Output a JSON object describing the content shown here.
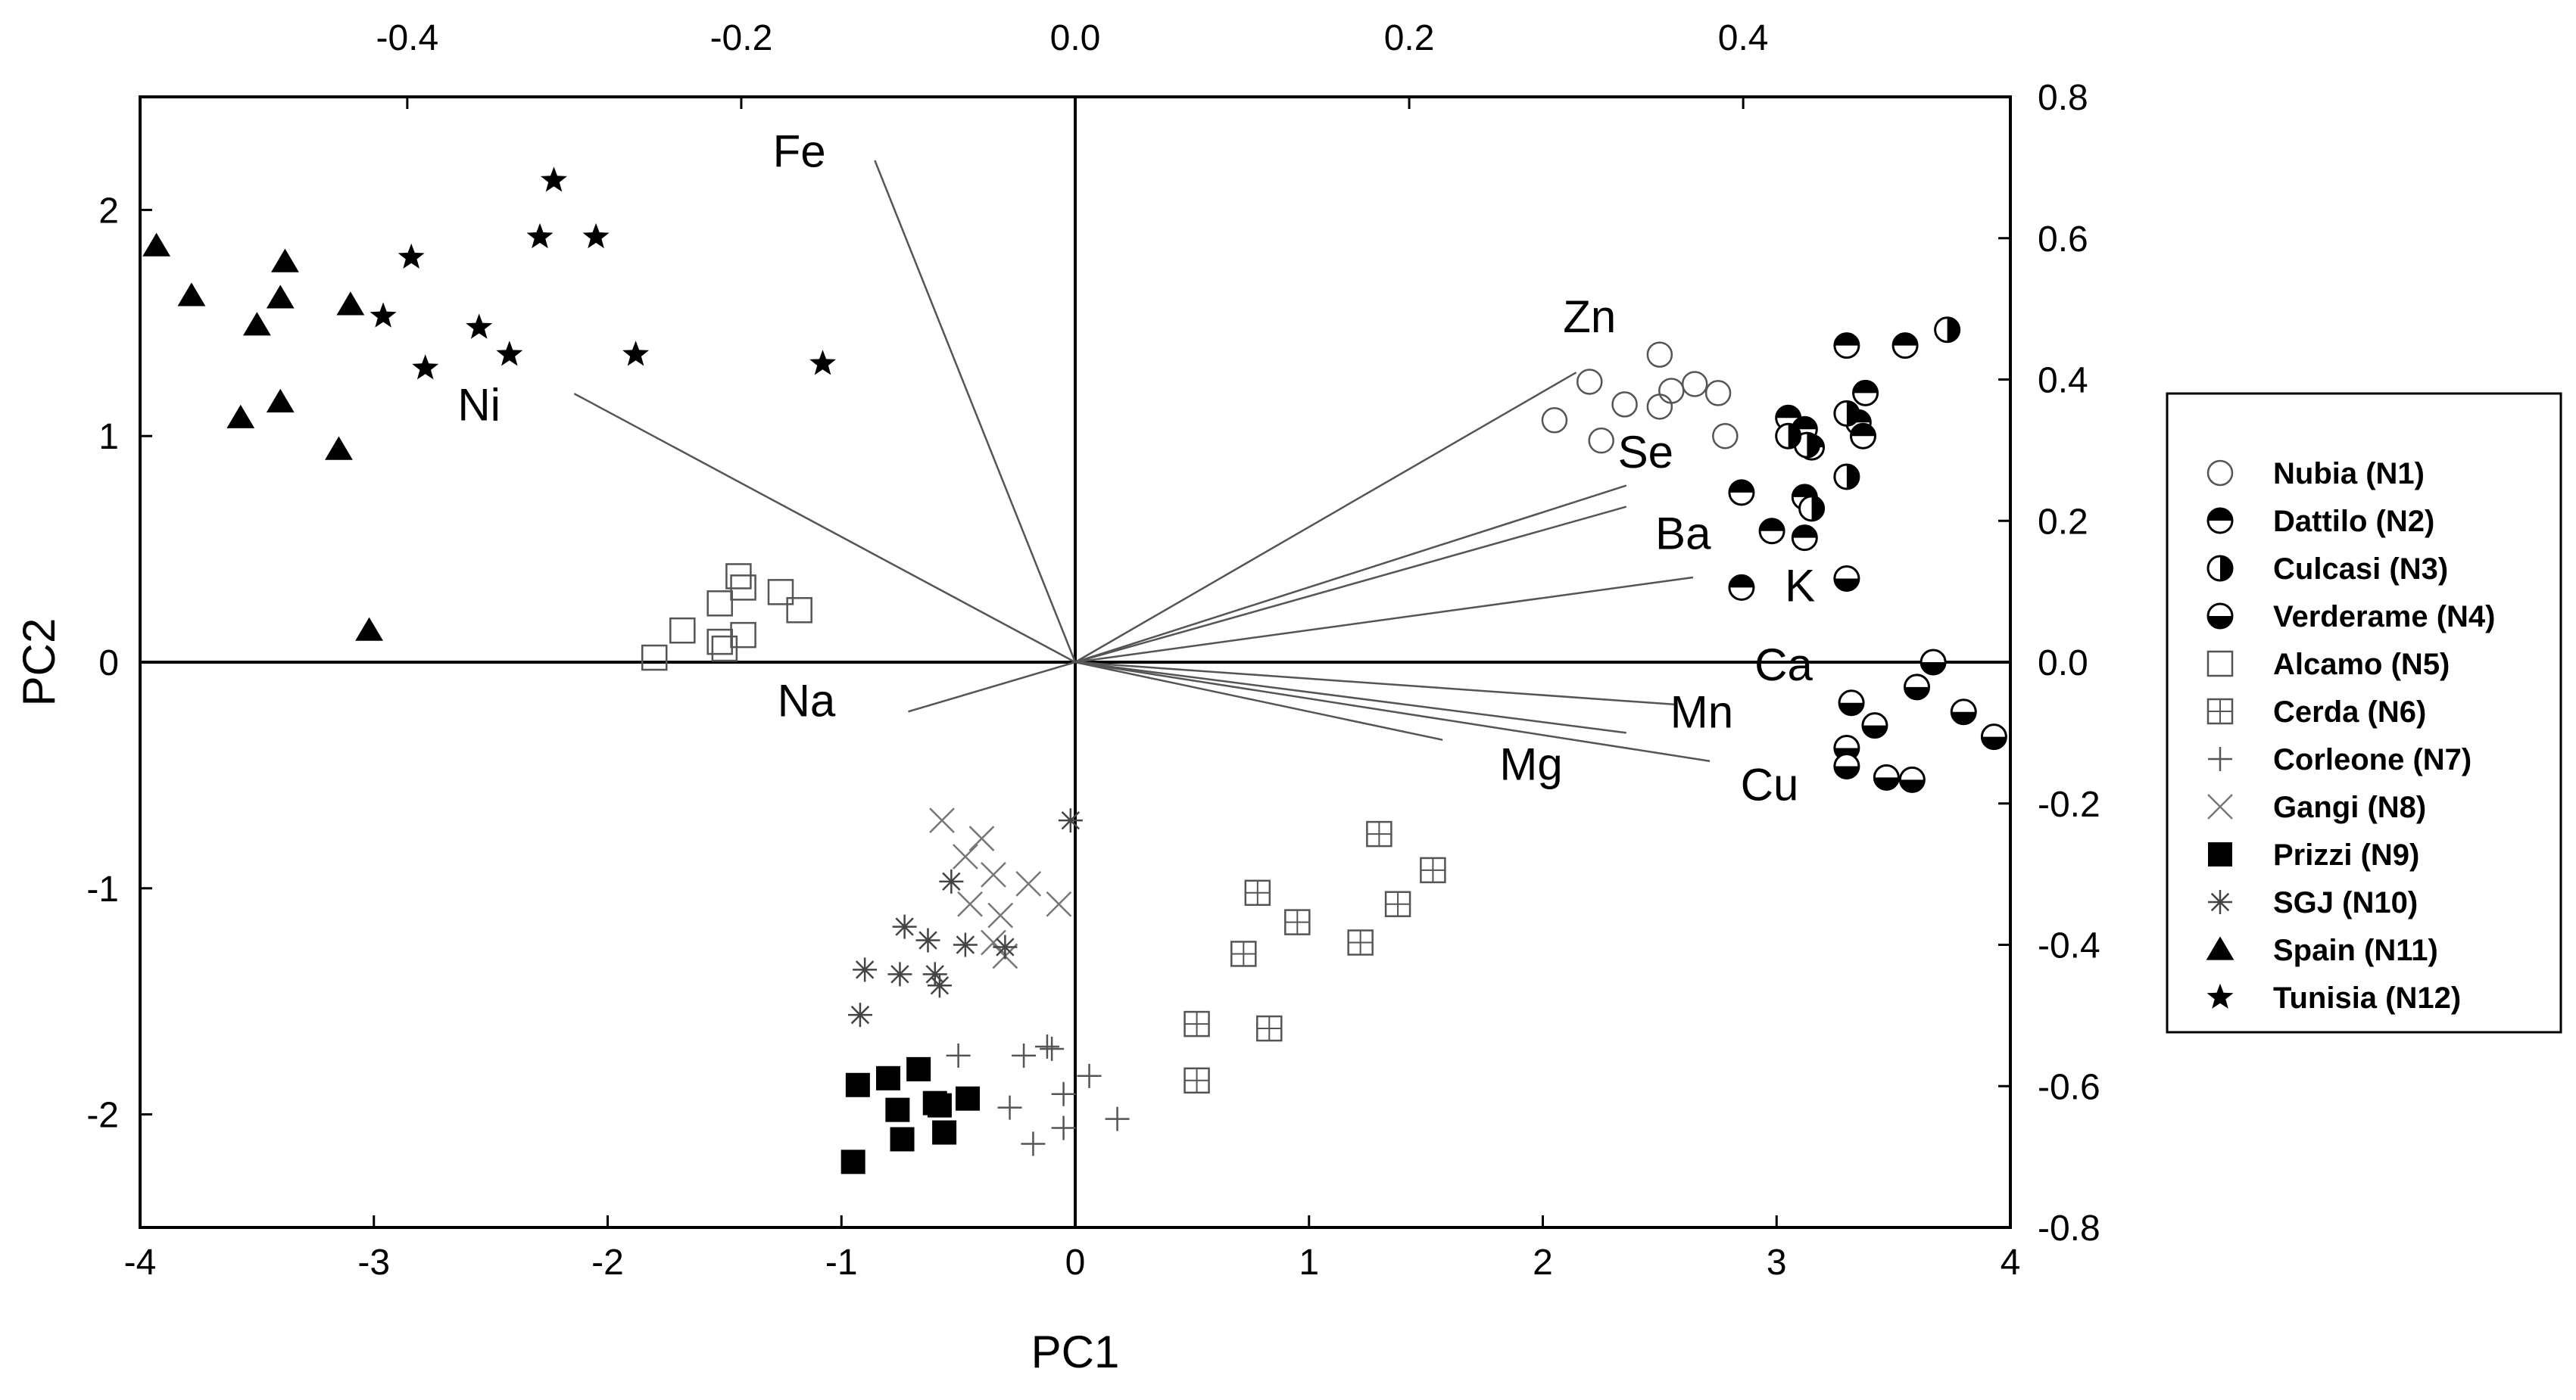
{
  "chart_data": {
    "type": "scatter",
    "subtype": "biplot",
    "title": "",
    "xlabel": "PC1",
    "ylabel": "PC2",
    "xlim": [
      -4,
      4
    ],
    "ylim": [
      -2.5,
      2.5
    ],
    "x_ticks": [
      -4,
      -3,
      -2,
      -1,
      0,
      1,
      2,
      3,
      4
    ],
    "y_ticks": [
      -2,
      -1,
      0,
      1,
      2
    ],
    "x_tick_labels": [
      "-4",
      "-3",
      "-2",
      "-1",
      "0",
      "1",
      "2",
      "3",
      "4"
    ],
    "y_tick_labels": [
      "-2",
      "-1",
      "0",
      "1",
      "2"
    ],
    "top_axis": {
      "lim": [
        -0.56,
        0.56
      ],
      "ticks": [
        -0.4,
        -0.2,
        0.0,
        0.2,
        0.4
      ],
      "tick_labels": [
        "-0.4",
        "-0.2",
        "0.0",
        "0.2",
        "0.4"
      ]
    },
    "right_axis": {
      "lim": [
        -0.8,
        0.8
      ],
      "ticks": [
        0.8,
        0.6,
        0.4,
        0.2,
        0.0,
        -0.2,
        -0.4,
        -0.6,
        -0.8
      ],
      "tick_labels": [
        "0.8",
        "0.6",
        "0.4",
        "0.2",
        "0.0",
        "-0.2",
        "-0.4",
        "-0.6",
        "-0.8"
      ]
    },
    "legend_position": "right",
    "loadings": [
      {
        "name": "Fe",
        "x": -0.12,
        "y": 0.71,
        "label_x": -1.18,
        "label_y": 2.19
      },
      {
        "name": "Ni",
        "x": -0.3,
        "y": 0.38,
        "label_x": -2.55,
        "label_y": 1.07
      },
      {
        "name": "Na",
        "x": -0.1,
        "y": -0.07,
        "label_x": -1.15,
        "label_y": -0.24
      },
      {
        "name": "Zn",
        "x": 0.3,
        "y": 0.41,
        "label_x": 2.2,
        "label_y": 1.46
      },
      {
        "name": "Se",
        "x": 0.33,
        "y": 0.25,
        "label_x": 2.44,
        "label_y": 0.86
      },
      {
        "name": "Ba",
        "x": 0.33,
        "y": 0.22,
        "label_x": 2.6,
        "label_y": 0.5
      },
      {
        "name": "K",
        "x": 0.37,
        "y": 0.12,
        "label_x": 3.1,
        "label_y": 0.27
      },
      {
        "name": "Ca",
        "x": 0.36,
        "y": -0.06,
        "label_x": 3.03,
        "label_y": -0.08
      },
      {
        "name": "Mn",
        "x": 0.33,
        "y": -0.1,
        "label_x": 2.68,
        "label_y": -0.29
      },
      {
        "name": "Cu",
        "x": 0.38,
        "y": -0.14,
        "label_x": 2.97,
        "label_y": -0.61
      },
      {
        "name": "Mg",
        "x": 0.22,
        "y": -0.11,
        "label_x": 1.95,
        "label_y": -0.52
      }
    ],
    "series": [
      {
        "name": "Nubia (N1)",
        "marker": "circle-open",
        "points": [
          [
            2.2,
            1.24
          ],
          [
            2.5,
            1.36
          ],
          [
            2.35,
            1.14
          ],
          [
            2.55,
            1.2
          ],
          [
            2.65,
            1.23
          ],
          [
            2.75,
            1.19
          ],
          [
            2.05,
            1.07
          ],
          [
            2.25,
            0.98
          ],
          [
            2.5,
            1.13
          ],
          [
            2.78,
            1.0
          ]
        ]
      },
      {
        "name": "Dattilo (N2)",
        "marker": "circle-top-half",
        "points": [
          [
            3.3,
            1.4
          ],
          [
            3.55,
            1.4
          ],
          [
            3.38,
            1.19
          ],
          [
            3.05,
            1.08
          ],
          [
            3.12,
            1.03
          ],
          [
            3.35,
            1.06
          ],
          [
            3.15,
            0.95
          ],
          [
            3.37,
            1.0
          ],
          [
            2.85,
            0.75
          ],
          [
            3.12,
            0.73
          ],
          [
            2.98,
            0.58
          ],
          [
            3.12,
            0.55
          ],
          [
            2.85,
            0.33
          ]
        ]
      },
      {
        "name": "Culcasi (N3)",
        "marker": "circle-right-half",
        "points": [
          [
            3.73,
            1.47
          ],
          [
            3.3,
            1.1
          ],
          [
            3.13,
            0.96
          ],
          [
            3.05,
            1.0
          ],
          [
            3.15,
            0.68
          ],
          [
            3.3,
            0.82
          ]
        ]
      },
      {
        "name": "Verderame (N4)",
        "marker": "circle-bottom-half",
        "points": [
          [
            3.67,
            0.0
          ],
          [
            3.6,
            -0.11
          ],
          [
            3.32,
            -0.18
          ],
          [
            3.42,
            -0.28
          ],
          [
            3.8,
            -0.22
          ],
          [
            3.93,
            -0.33
          ],
          [
            3.3,
            -0.38
          ],
          [
            3.3,
            -0.46
          ],
          [
            3.47,
            -0.51
          ],
          [
            3.58,
            -0.52
          ],
          [
            3.3,
            0.37
          ]
        ]
      },
      {
        "name": "Alcamo (N5)",
        "marker": "square-open",
        "points": [
          [
            -1.44,
            0.38
          ],
          [
            -1.52,
            0.26
          ],
          [
            -1.42,
            0.33
          ],
          [
            -1.26,
            0.31
          ],
          [
            -1.18,
            0.23
          ],
          [
            -1.68,
            0.14
          ],
          [
            -1.52,
            0.09
          ],
          [
            -1.42,
            0.12
          ],
          [
            -1.5,
            0.06
          ],
          [
            -1.8,
            0.02
          ]
        ]
      },
      {
        "name": "Cerda (N6)",
        "marker": "square-plus",
        "points": [
          [
            1.3,
            -0.76
          ],
          [
            1.53,
            -0.92
          ],
          [
            0.78,
            -1.02
          ],
          [
            1.38,
            -1.07
          ],
          [
            0.95,
            -1.15
          ],
          [
            1.22,
            -1.24
          ],
          [
            0.72,
            -1.29
          ],
          [
            0.52,
            -1.6
          ],
          [
            0.83,
            -1.62
          ],
          [
            0.52,
            -1.85
          ]
        ]
      },
      {
        "name": "Corleone (N7)",
        "marker": "plus",
        "points": [
          [
            -0.5,
            -1.74
          ],
          [
            -0.22,
            -1.74
          ],
          [
            -0.1,
            -1.71
          ],
          [
            -0.12,
            -1.7
          ],
          [
            0.06,
            -1.83
          ],
          [
            -0.05,
            -1.91
          ],
          [
            -0.28,
            -1.97
          ],
          [
            0.18,
            -2.02
          ],
          [
            -0.05,
            -2.06
          ],
          [
            -0.18,
            -2.13
          ]
        ]
      },
      {
        "name": "Gangi (N8)",
        "marker": "x",
        "points": [
          [
            -0.57,
            -0.7
          ],
          [
            -0.4,
            -0.78
          ],
          [
            -0.47,
            -0.86
          ],
          [
            -0.35,
            -0.94
          ],
          [
            -0.2,
            -0.98
          ],
          [
            -0.07,
            -1.07
          ],
          [
            -0.45,
            -1.07
          ],
          [
            -0.32,
            -1.12
          ],
          [
            -0.35,
            -1.24
          ],
          [
            -0.3,
            -1.3
          ]
        ]
      },
      {
        "name": "Prizzi (N9)",
        "marker": "square-filled",
        "points": [
          [
            -0.67,
            -1.8
          ],
          [
            -0.8,
            -1.84
          ],
          [
            -0.93,
            -1.87
          ],
          [
            -0.46,
            -1.93
          ],
          [
            -0.58,
            -1.96
          ],
          [
            -0.76,
            -1.98
          ],
          [
            -0.56,
            -2.08
          ],
          [
            -0.74,
            -2.11
          ],
          [
            -0.95,
            -2.21
          ],
          [
            -0.6,
            -1.95
          ]
        ]
      },
      {
        "name": "SGJ (N10)",
        "marker": "asterisk",
        "points": [
          [
            -0.02,
            -0.7
          ],
          [
            -0.53,
            -0.97
          ],
          [
            -0.73,
            -1.17
          ],
          [
            -0.63,
            -1.23
          ],
          [
            -0.47,
            -1.25
          ],
          [
            -0.3,
            -1.26
          ],
          [
            -0.9,
            -1.36
          ],
          [
            -0.75,
            -1.38
          ],
          [
            -0.6,
            -1.38
          ],
          [
            -0.58,
            -1.43
          ],
          [
            -0.92,
            -1.56
          ]
        ]
      },
      {
        "name": "Spain (N11)",
        "marker": "triangle-filled",
        "points": [
          [
            -3.93,
            1.84
          ],
          [
            -3.38,
            1.77
          ],
          [
            -3.78,
            1.62
          ],
          [
            -3.4,
            1.61
          ],
          [
            -3.1,
            1.58
          ],
          [
            -3.5,
            1.49
          ],
          [
            -3.4,
            1.15
          ],
          [
            -3.57,
            1.08
          ],
          [
            -3.15,
            0.94
          ],
          [
            -3.02,
            0.14
          ]
        ]
      },
      {
        "name": "Tunisia (N12)",
        "marker": "star-filled",
        "points": [
          [
            -2.23,
            2.13
          ],
          [
            -2.29,
            1.88
          ],
          [
            -2.05,
            1.88
          ],
          [
            -2.84,
            1.79
          ],
          [
            -2.96,
            1.53
          ],
          [
            -2.55,
            1.48
          ],
          [
            -2.42,
            1.36
          ],
          [
            -1.88,
            1.36
          ],
          [
            -2.78,
            1.3
          ],
          [
            -1.08,
            1.32
          ]
        ]
      }
    ]
  }
}
